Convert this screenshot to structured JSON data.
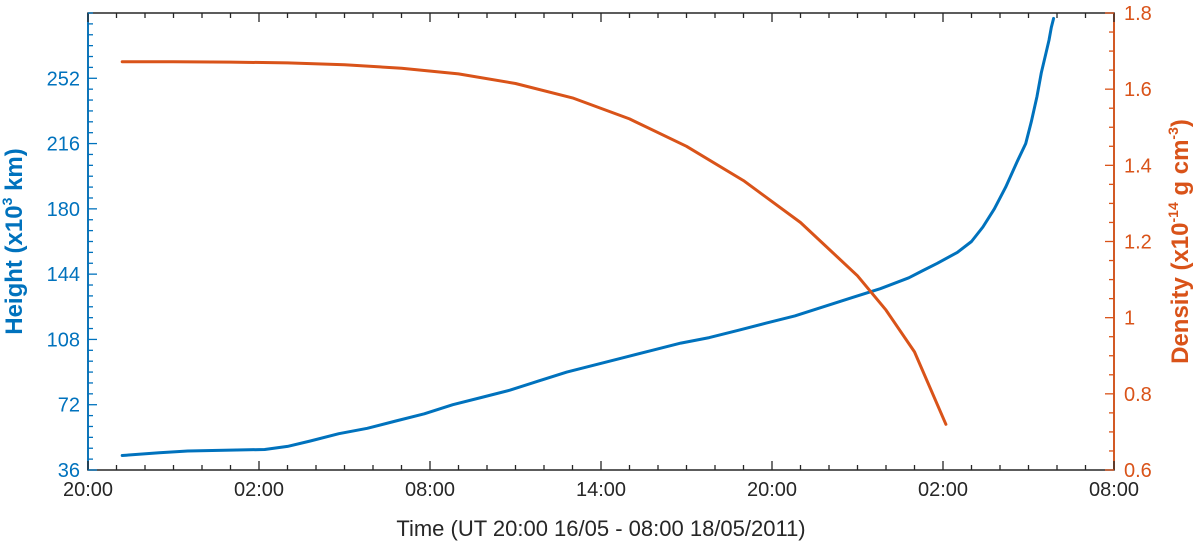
{
  "chart_data": {
    "type": "line",
    "xlabel": "Time (UT 20:00 16/05 - 08:00 18/05/2011)",
    "x_ticks": [
      {
        "hours": 0,
        "label": "20:00"
      },
      {
        "hours": 6,
        "label": "02:00"
      },
      {
        "hours": 12,
        "label": "08:00"
      },
      {
        "hours": 18,
        "label": "14:00"
      },
      {
        "hours": 24,
        "label": "20:00"
      },
      {
        "hours": 30,
        "label": "02:00"
      },
      {
        "hours": 36,
        "label": "08:00"
      }
    ],
    "xlim": [
      0,
      36
    ],
    "left_axis": {
      "label_main": "Height (x10",
      "label_sup": "3",
      "label_end": " km)",
      "ylim": [
        36,
        288
      ],
      "ticks": [
        36,
        72,
        108,
        144,
        180,
        216,
        252
      ],
      "color": "#0072BD"
    },
    "right_axis": {
      "label_main": "Density (x10",
      "label_sup": "-14",
      "label_mid": " g cm",
      "label_sup2": "-3",
      "label_end": ")",
      "ylim": [
        0.6,
        1.8
      ],
      "ticks": [
        0.6,
        0.8,
        1,
        1.2,
        1.4,
        1.6,
        1.8
      ],
      "tick_labels": [
        "0.6",
        "0.8",
        "1",
        "1.2",
        "1.4",
        "1.6",
        "1.8"
      ],
      "color": "#D95319"
    },
    "series": [
      {
        "axis": "left",
        "color": "#0072BD",
        "x": [
          1.2,
          2.5,
          3.5,
          5.0,
          6.2,
          7.0,
          7.8,
          8.8,
          9.8,
          10.8,
          11.8,
          12.8,
          13.8,
          14.8,
          15.8,
          16.8,
          17.8,
          18.8,
          19.8,
          20.8,
          21.8,
          22.8,
          23.8,
          24.8,
          25.8,
          26.8,
          27.8,
          28.8,
          29.3,
          29.8,
          30.5,
          31.0,
          31.4,
          31.8,
          32.2,
          32.6,
          32.9,
          33.1,
          33.3,
          33.45,
          33.6,
          33.72,
          33.8,
          33.88
        ],
        "y": [
          44,
          45.5,
          46.5,
          47,
          47.3,
          49,
          52,
          56,
          59,
          63,
          67,
          72,
          76,
          80,
          85,
          90,
          94,
          98,
          102,
          106,
          109,
          113,
          117,
          121,
          126,
          131,
          136,
          142,
          146,
          150,
          156,
          162,
          170,
          180,
          192,
          206,
          216,
          228,
          242,
          255,
          265,
          273,
          280,
          285
        ]
      },
      {
        "axis": "right",
        "color": "#D95319",
        "x": [
          1.2,
          3,
          5,
          7,
          9,
          11,
          13,
          15,
          17,
          19,
          21,
          23,
          25,
          27,
          28,
          29,
          30.1
        ],
        "y": [
          1.672,
          1.672,
          1.671,
          1.669,
          1.664,
          1.655,
          1.64,
          1.615,
          1.577,
          1.522,
          1.45,
          1.36,
          1.25,
          1.11,
          1.02,
          0.91,
          0.72
        ]
      }
    ]
  }
}
